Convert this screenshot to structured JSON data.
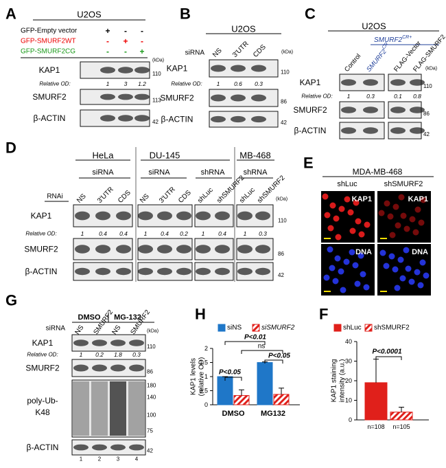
{
  "panels": {
    "A": {
      "letter": "A",
      "cell_line": "U2OS",
      "conditions": [
        {
          "label": "GFP-Empty vector",
          "signs": [
            "+",
            "-",
            "-"
          ]
        },
        {
          "label": "GFP-SMURF2WT",
          "signs": [
            "-",
            "+",
            "-"
          ]
        },
        {
          "label": "GFP-SMURF2CG",
          "signs": [
            "-",
            "-",
            "+"
          ]
        }
      ],
      "kda": "(kDa)",
      "blots": [
        {
          "label": "KAP1",
          "marker": 110
        },
        {
          "label": "SMURF2",
          "marker": 113
        },
        {
          "label": "β-ACTIN",
          "marker": 42
        }
      ],
      "od_label": "Relative OD:",
      "od": [
        1,
        3,
        1.2
      ]
    },
    "B": {
      "letter": "B",
      "cell_line": "U2OS",
      "treatment": "siRNA",
      "lanes": [
        "NS",
        "3'UTR",
        "CDS"
      ],
      "kda": "(kDa)",
      "blots": [
        {
          "label": "KAP1",
          "marker": 110
        },
        {
          "label": "SMURF2",
          "marker": 86
        },
        {
          "label": "β-ACTIN",
          "marker": 42
        }
      ],
      "od_label": "Relative OD:",
      "od": [
        1,
        0.6,
        0.3
      ]
    },
    "C": {
      "letter": "C",
      "cell_line": "U2OS",
      "group": {
        "text": "SMURF2",
        "sup": "CR+"
      },
      "lanes": [
        {
          "text": "Control"
        },
        {
          "text": "SMURF2",
          "sup": "CR"
        },
        {
          "text": "FLAG-Vector"
        },
        {
          "text": "FLAG-SMURF2"
        }
      ],
      "kda": "(kDa)",
      "blots": [
        {
          "label": "KAP1",
          "marker": 110
        },
        {
          "label": "SMURF2",
          "marker": 86
        },
        {
          "label": "β-ACTIN",
          "marker": 42
        }
      ],
      "od_label": "Relative OD:",
      "od": [
        1,
        0.3,
        0.1,
        0.8
      ]
    },
    "D": {
      "letter": "D",
      "cell_lines": [
        "HeLa",
        "DU-145",
        "MB-468"
      ],
      "treatments": [
        "siRNA",
        "siRNA",
        "shRNA",
        "shRNA"
      ],
      "rnai": "RNAi",
      "lanes": [
        "NS",
        "3'UTR",
        "CDS",
        "NS",
        "3'UTR",
        "CDS",
        "shLuc",
        "shSMURF2",
        "shLuc",
        "shSMURF2"
      ],
      "kda": "(kDa)",
      "blots": [
        {
          "label": "KAP1",
          "marker": 110
        },
        {
          "label": "SMURF2",
          "marker": 86
        },
        {
          "label": "β-ACTIN",
          "marker": 42
        }
      ],
      "od_label": "Relative OD:",
      "od": [
        1,
        0.4,
        0.4,
        1,
        0.4,
        0.2,
        1,
        0.4,
        1,
        0.3
      ]
    },
    "E": {
      "letter": "E",
      "cell_line": "MDA-MB-468",
      "columns": [
        "shLuc",
        "shSMURF2"
      ],
      "rows": [
        "KAP1",
        "DNA"
      ]
    },
    "G": {
      "letter": "G",
      "treatments": [
        "DMSO",
        "MG-132"
      ],
      "treatment_label": "siRNA",
      "lanes": [
        "NS",
        "SMURF2",
        "NS",
        "SMURF2"
      ],
      "kda": "(kDa)",
      "blots": [
        {
          "label": "KAP1",
          "markers": [
            110
          ]
        },
        {
          "label": "SMURF2",
          "markers": [
            86
          ]
        },
        {
          "label_lines": [
            "poly-Ub-",
            "K48"
          ],
          "markers": [
            180,
            140,
            100,
            75
          ]
        },
        {
          "label": "β-ACTIN",
          "markers": [
            42
          ]
        }
      ],
      "od_label": "Relative OD:",
      "od": [
        1,
        0.2,
        1.8,
        0.3
      ],
      "lane_numbers": [
        1,
        2,
        3,
        4
      ]
    }
  },
  "chart_data": [
    {
      "type": "bar",
      "letter": "H",
      "y_label": [
        "KAP1 levels",
        "(relative OD)"
      ],
      "categories": [
        "DMSO",
        "MG132"
      ],
      "series": [
        {
          "name": "siNS",
          "color": "#1f77c8",
          "values": [
            1,
            1.5
          ],
          "errors": [
            0,
            0.02
          ]
        },
        {
          "name": "siSMURF2",
          "color": "#e0201b",
          "pattern": "hatch",
          "italic": true,
          "values": [
            0.33,
            0.37
          ],
          "errors": [
            0.2,
            0.22
          ]
        }
      ],
      "ylim": [
        0,
        2
      ],
      "yticks": [
        0,
        0.5,
        1,
        1.5,
        2
      ],
      "annotations": [
        "P<0.05",
        "P<0.01",
        "ns",
        "P<0.05"
      ]
    },
    {
      "type": "bar",
      "letter": "F",
      "y_label": [
        "KAP1 staining",
        "intensity (a.u.)"
      ],
      "series": [
        {
          "name": "shLuc",
          "color": "#e0201b",
          "values": [
            19
          ],
          "errors": [
            12
          ],
          "n_label": "n=108"
        },
        {
          "name": "shSMURF2",
          "color": "#e0201b",
          "pattern": "hatch",
          "values": [
            4
          ],
          "errors": [
            2.5
          ],
          "n_label": "n=105"
        }
      ],
      "ylim": [
        0,
        40
      ],
      "yticks": [
        0,
        10,
        20,
        30,
        40
      ],
      "annotations": [
        "P<0.0001"
      ]
    }
  ]
}
